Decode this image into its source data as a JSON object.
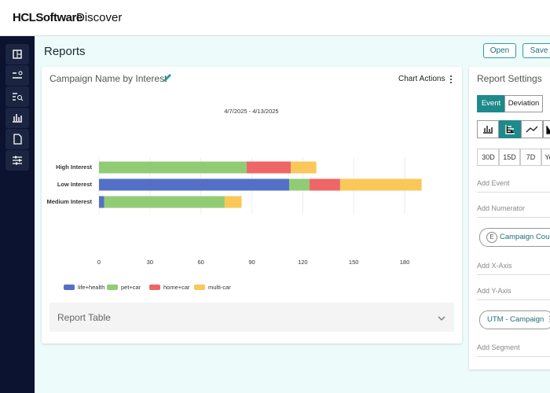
{
  "header": {
    "brand": "HCLSoftware",
    "product": "Discover"
  },
  "page": {
    "title": "Reports",
    "open": "Open",
    "save": "Save"
  },
  "card": {
    "title": "Campaign Name by Interest",
    "actions": "Chart Actions",
    "report_table": "Report Table"
  },
  "settings": {
    "title": "Report Settings",
    "event": "Event",
    "deviation": "Deviation",
    "periods": [
      "30D",
      "15D",
      "7D",
      "Year"
    ],
    "add_event": "Add Event",
    "add_numerator": "Add Numerator",
    "event_chip_badge": "E",
    "event_chip": "Campaign Count",
    "add_x_axis": "Add X-Axis",
    "add_y_axis": "Add Y-Axis",
    "axis_chip": "UTM - Campaign",
    "add_segment": "Add Segment"
  },
  "chart_data": {
    "type": "bar",
    "orientation": "horizontal",
    "stacked": true,
    "subtitle": "4/7/2025 - 4/13/2025",
    "categories": [
      "High Interest",
      "Low Interest",
      "Medium Interest"
    ],
    "series": [
      {
        "name": "life+health",
        "color": "#5470c6",
        "values": [
          0,
          112,
          3
        ]
      },
      {
        "name": "pet+car",
        "color": "#91cc75",
        "values": [
          87,
          12,
          71
        ]
      },
      {
        "name": "home+car",
        "color": "#ee6666",
        "values": [
          26,
          18,
          0
        ]
      },
      {
        "name": "multi-car",
        "color": "#fac858",
        "values": [
          15,
          48,
          10
        ]
      }
    ],
    "xlim": [
      0,
      195
    ],
    "xticks": [
      0,
      30,
      60,
      90,
      120,
      150,
      180
    ],
    "grid": true
  }
}
